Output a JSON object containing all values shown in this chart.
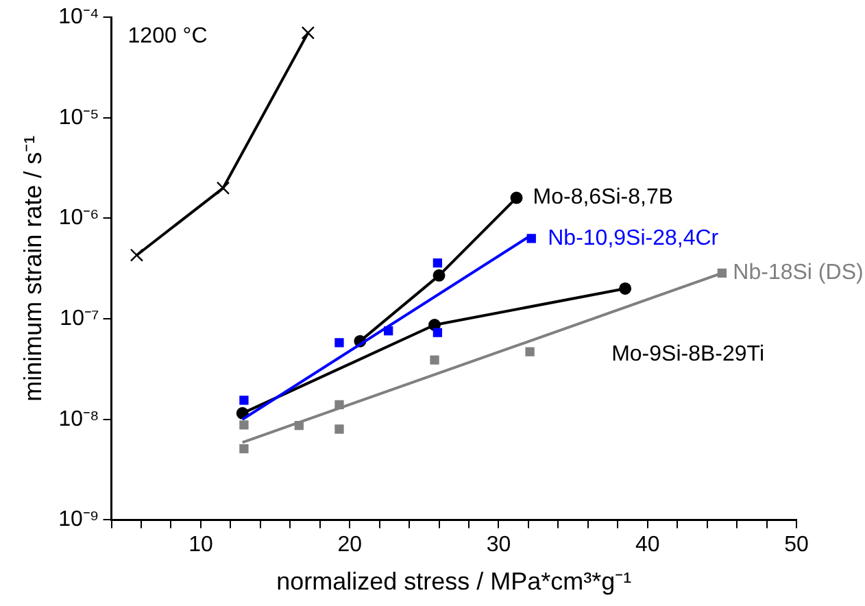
{
  "chart_data": {
    "type": "line",
    "xlabel": "normalized stress / MPa*cm³*g⁻¹",
    "ylabel": "minimum strain rate / s⁻¹",
    "log": "y",
    "grid": false,
    "legend": false,
    "annotations": [
      "1200 °C"
    ],
    "xlim": [
      4,
      50
    ],
    "xticks": [
      {
        "value": 4,
        "label": null
      },
      {
        "value": 6,
        "label": null
      },
      {
        "value": 8,
        "label": null
      },
      10,
      {
        "value": 12,
        "label": null
      },
      {
        "value": 14,
        "label": null
      },
      {
        "value": 16,
        "label": null
      },
      {
        "value": 18,
        "label": null
      },
      20,
      {
        "value": 22,
        "label": null
      },
      {
        "value": 24,
        "label": null
      },
      {
        "value": 26,
        "label": null
      },
      {
        "value": 28,
        "label": null
      },
      30,
      {
        "value": 32,
        "label": null
      },
      {
        "value": 34,
        "label": null
      },
      {
        "value": 36,
        "label": null
      },
      {
        "value": 38,
        "label": null
      },
      40,
      {
        "value": 42,
        "label": null
      },
      {
        "value": 44,
        "label": null
      },
      {
        "value": 46,
        "label": null
      },
      {
        "value": 48,
        "label": null
      },
      50
    ],
    "ylim": [
      1e-09,
      0.0001
    ],
    "yticks": [
      {
        "value": 1e-09,
        "label": "10⁻⁹"
      },
      {
        "value": 1e-08,
        "label": "10⁻⁸"
      },
      {
        "value": 1e-07,
        "label": "10⁻⁷"
      },
      {
        "value": 1e-06,
        "label": "10⁻⁶"
      },
      {
        "value": 1e-05,
        "label": "10⁻⁵"
      },
      {
        "value": 0.0001,
        "label": "10⁻⁴"
      }
    ],
    "series": [
      {
        "marker": "cross",
        "color": "#000000",
        "x": [
          5.7,
          11.5,
          17.2
        ],
        "values": [
          4.3e-07,
          2e-06,
          7e-05
        ]
      },
      {
        "marker": "circle",
        "name": "Mo-8,6Si-8,7B",
        "color": "#000000",
        "x": [
          20.7,
          26,
          31.2
        ],
        "values": [
          6e-08,
          2.7e-07,
          1.6e-06
        ]
      },
      {
        "type": "scatter",
        "marker": "square",
        "name": "Nb-10,9Si-28,4Cr",
        "color": "#0000ff",
        "x": [
          12.9,
          19.3,
          22.6,
          25.9,
          25.9,
          32.2
        ],
        "values": [
          1.55e-08,
          5.8e-08,
          7.6e-08,
          3.6e-07,
          7.3e-08,
          6.3e-07
        ]
      },
      {
        "marker": "none",
        "color": "#0000ff",
        "x": [
          12.8,
          32.2
        ],
        "values": [
          1e-08,
          6.8e-07
        ]
      },
      {
        "type": "scatter",
        "marker": "square",
        "name": "Nb-18Si (DS)",
        "color": "#808080",
        "x": [
          12.9,
          12.9,
          16.6,
          19.3,
          19.3,
          25.7,
          32.1,
          45
        ],
        "values": [
          8.8e-09,
          5.1e-09,
          8.7e-09,
          1.4e-08,
          8e-09,
          3.9e-08,
          4.7e-08,
          2.85e-07
        ]
      },
      {
        "marker": "none",
        "color": "#808080",
        "x": [
          12.8,
          45
        ],
        "values": [
          5.9e-09,
          2.85e-07
        ]
      },
      {
        "marker": "circle",
        "name": "Mo-9Si-8B-29Ti",
        "color": "#000000",
        "x": [
          12.8,
          25.7,
          38.5
        ],
        "values": [
          1.15e-08,
          8.7e-08,
          2e-07
        ]
      }
    ]
  }
}
